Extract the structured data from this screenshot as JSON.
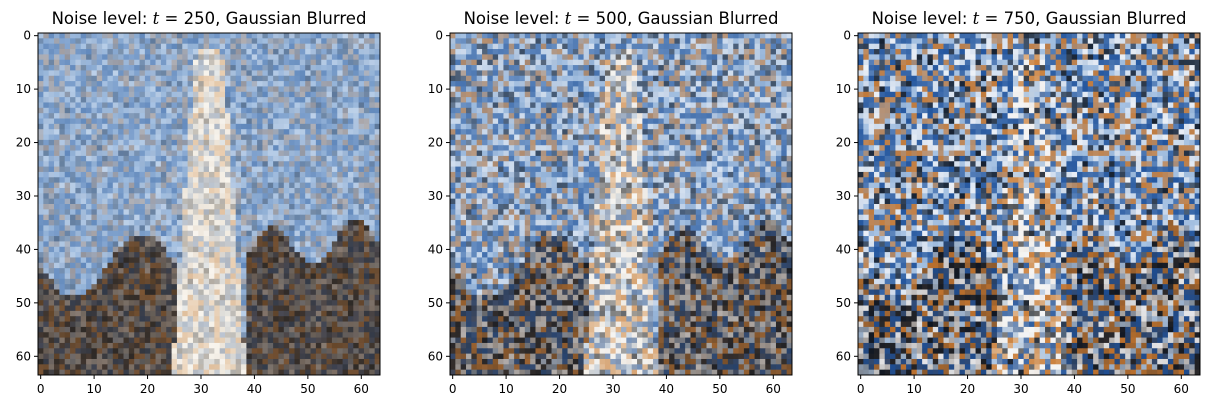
{
  "chart_data": [
    {
      "type": "heatmap",
      "title_prefix": "Noise level: ",
      "title_var": "t",
      "title_eq": " = ",
      "title_value": "250",
      "title_suffix": ", Gaussian Blurred",
      "t": 250,
      "grid_size": 64,
      "xlim": [
        -0.5,
        63.5
      ],
      "ylim": [
        63.5,
        -0.5
      ],
      "xticks": [
        "0",
        "10",
        "20",
        "30",
        "40",
        "50",
        "60"
      ],
      "yticks": [
        "0",
        "10",
        "20",
        "30",
        "40",
        "50",
        "60"
      ],
      "xlabel": "",
      "ylabel": ""
    },
    {
      "type": "heatmap",
      "title_prefix": "Noise level: ",
      "title_var": "t",
      "title_eq": " = ",
      "title_value": "500",
      "title_suffix": ", Gaussian Blurred",
      "t": 500,
      "grid_size": 64,
      "xlim": [
        -0.5,
        63.5
      ],
      "ylim": [
        63.5,
        -0.5
      ],
      "xticks": [
        "0",
        "10",
        "20",
        "30",
        "40",
        "50",
        "60"
      ],
      "yticks": [
        "0",
        "10",
        "20",
        "30",
        "40",
        "50",
        "60"
      ],
      "xlabel": "",
      "ylabel": ""
    },
    {
      "type": "heatmap",
      "title_prefix": "Noise level: ",
      "title_var": "t",
      "title_eq": " = ",
      "title_value": "750",
      "title_suffix": ", Gaussian Blurred",
      "t": 750,
      "grid_size": 64,
      "xlim": [
        -0.5,
        63.5
      ],
      "ylim": [
        63.5,
        -0.5
      ],
      "xticks": [
        "0",
        "10",
        "20",
        "30",
        "40",
        "50",
        "60"
      ],
      "yticks": [
        "0",
        "10",
        "20",
        "30",
        "40",
        "50",
        "60"
      ],
      "xlabel": "",
      "ylabel": ""
    }
  ],
  "colors": {
    "sky": "#7d9fc9",
    "sky_light": "#a9c4e4",
    "tower": "#e8dccb",
    "rock": "#3a3128",
    "rock_warm": "#6b5240",
    "noise_blue": "#1b4f9a",
    "noise_orange": "#c8772e",
    "noise_white": "#f4f6fa",
    "noise_dark": "#0b1422"
  }
}
